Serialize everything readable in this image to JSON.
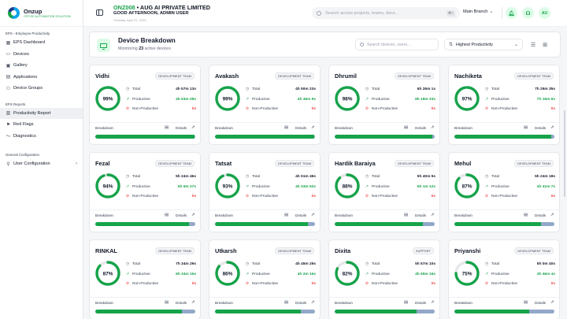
{
  "brand": {
    "name": "Onzup",
    "tagline": "OFFICE AUTOMATION SOLUTION"
  },
  "sidebar": {
    "sections": [
      {
        "title": "EPS - Employee Productivity",
        "items": [
          {
            "label": "EPS Dashboard",
            "icon": "grid-icon"
          },
          {
            "label": "Devices",
            "icon": "monitor-icon"
          },
          {
            "label": "Gallery",
            "icon": "image-icon"
          },
          {
            "label": "Applications",
            "icon": "apps-icon"
          },
          {
            "label": "Device Groups",
            "icon": "users-icon"
          }
        ]
      },
      {
        "title": "EPS Reports",
        "items": [
          {
            "label": "Productivity Report",
            "icon": "chart-icon",
            "active": true
          },
          {
            "label": "Red Flags",
            "icon": "flag-icon"
          },
          {
            "label": "Diagnostics",
            "icon": "pulse-icon"
          }
        ]
      },
      {
        "title": "General Configuration",
        "items": [
          {
            "label": "User Configuration",
            "icon": "user-icon",
            "chevron": true
          }
        ]
      }
    ]
  },
  "header": {
    "org_code": "ONZ008",
    "org_name": "AUG AI PRIVATE LIMITED",
    "greeting": "GOOD AFTERNOON, ADMIN USER",
    "date": "Tuesday, April 21, 2026",
    "search_placeholder": "Search across projects, teams, docs...",
    "search_shortcut": "⌘+",
    "branch": "Main Branch",
    "avatar": "AU"
  },
  "breakdown": {
    "title": "Device Breakdown",
    "subtitle_prefix": "Monitoring",
    "count": "23",
    "subtitle_suffix": "active devices",
    "search_placeholder": "Search devices, users...",
    "sort_value": "Highest Productivity"
  },
  "labels": {
    "total": "Total",
    "productive": "Productive",
    "non_productive": "Non-Productive",
    "breakdown": "Breakdown",
    "details": "Details"
  },
  "colors": {
    "accent": "#16a34a",
    "danger": "#ef4444",
    "bar_track": "#93a8c8"
  },
  "cards": [
    {
      "name": "Vidhi",
      "team": "DEVELOPMENT TEAM",
      "pct": 99,
      "pct_label": "99%",
      "total": "4h 57m 13s",
      "productive": "4h 53m 28s",
      "non_productive": "0s"
    },
    {
      "name": "Avakash",
      "team": "DEVELOPMENT TEAM",
      "pct": 99,
      "pct_label": "99%",
      "total": "4h 50m 23s",
      "productive": "4h 46m 9s",
      "non_productive": "0s"
    },
    {
      "name": "Dhrumil",
      "team": "DEVELOPMENT TEAM",
      "pct": 98,
      "pct_label": "98%",
      "total": "6h 26m 1s",
      "productive": "6h 18m 23s",
      "non_productive": "0s"
    },
    {
      "name": "Nachiketa",
      "team": "DEVELOPMENT TEAM",
      "pct": 97,
      "pct_label": "97%",
      "total": "7h 29m 35s",
      "productive": "7h 16m 9s",
      "non_productive": "0s"
    },
    {
      "name": "Fezal",
      "team": "DEVELOPMENT TEAM",
      "pct": 94,
      "pct_label": "94%",
      "total": "5h 24m 46s",
      "productive": "5h 5m 27s",
      "non_productive": "0s"
    },
    {
      "name": "Tatsat",
      "team": "DEVELOPMENT TEAM",
      "pct": 93,
      "pct_label": "93%",
      "total": "4h 51m 46s",
      "productive": "4h 33m 52s",
      "non_productive": "0s"
    },
    {
      "name": "Hardik Baraiya",
      "team": "DEVELOPMENT TEAM",
      "pct": 88,
      "pct_label": "88%",
      "total": "5h 40m 5s",
      "productive": "5h 1m 12s",
      "non_productive": "0s"
    },
    {
      "name": "Mehul",
      "team": "DEVELOPMENT TEAM",
      "pct": 87,
      "pct_label": "87%",
      "total": "5h 24m 18s",
      "productive": "4h 41m 7s",
      "non_productive": "0s"
    },
    {
      "name": "RINKAL",
      "team": "DEVELOPMENT TEAM",
      "pct": 87,
      "pct_label": "87%",
      "total": "7h 34m 29s",
      "productive": "6h 34m 15s",
      "non_productive": "0s"
    },
    {
      "name": "Utkarsh",
      "team": "DEVELOPMENT TEAM",
      "pct": 86,
      "pct_label": "86%",
      "total": "4h 45m 29s",
      "productive": "4h 2m 16s",
      "non_productive": "0s"
    },
    {
      "name": "Dixita",
      "team": "SUPPORT",
      "pct": 82,
      "pct_label": "82%",
      "total": "5h 57m 10s",
      "productive": "4h 55m 16s",
      "non_productive": "0s"
    },
    {
      "name": "Priyanshi",
      "team": "DEVELOPMENT TEAM",
      "pct": 75,
      "pct_label": "75%",
      "total": "5h 0m 40s",
      "productive": "3h 46m 4s",
      "non_productive": "0s"
    }
  ]
}
